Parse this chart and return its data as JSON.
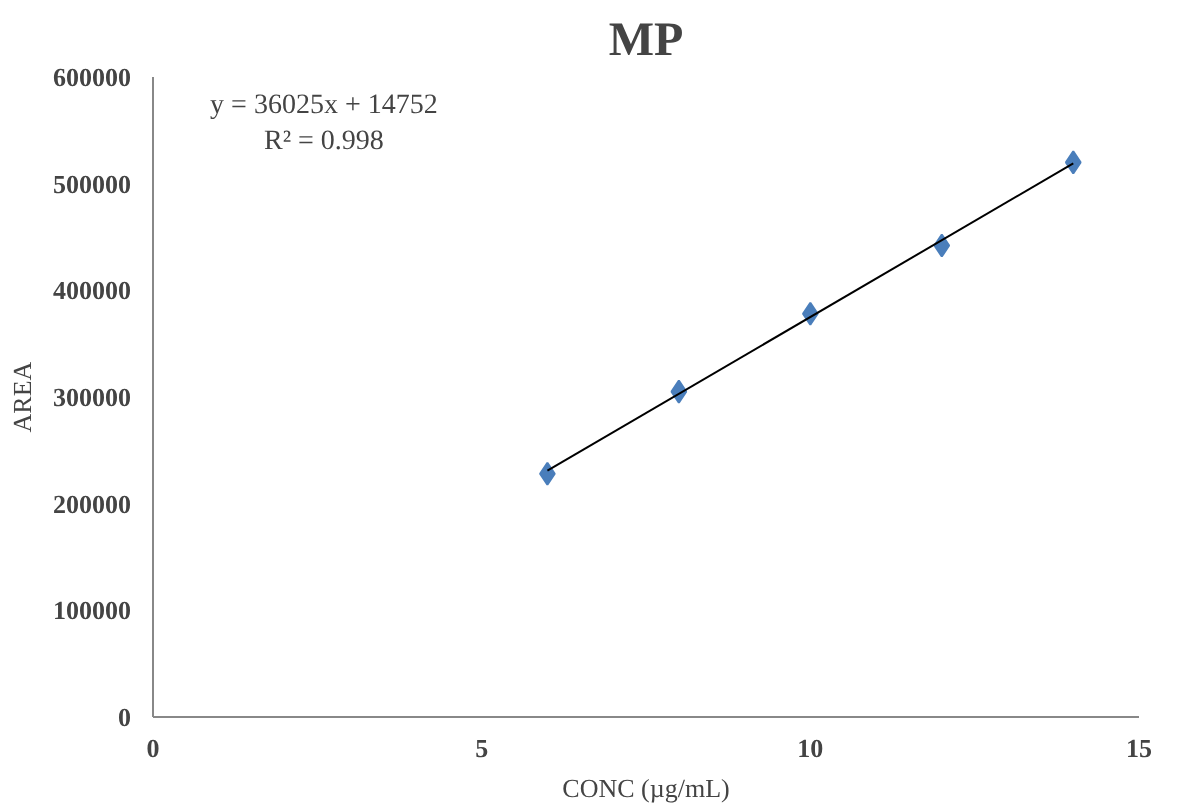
{
  "chart_data": {
    "type": "scatter",
    "title": "MP",
    "xlabel": "CONC (µg/mL)",
    "ylabel": "AREA",
    "annotations": [
      "y = 36025x + 14752",
      "R² = 0.998"
    ],
    "series": [
      {
        "color": "#4a7ebb",
        "x": [
          6,
          8,
          10,
          12,
          14
        ],
        "values": [
          228000,
          305000,
          378000,
          442000,
          520000
        ],
        "marker": "diamond"
      },
      {
        "type": "line",
        "color": "#000000",
        "x": [
          6,
          14
        ],
        "values": [
          231000,
          519000
        ],
        "marker": "none",
        "line_style": "solid"
      }
    ],
    "xlim": [
      0,
      15
    ],
    "xticks": [
      0,
      5,
      10,
      15
    ],
    "ylim": [
      0,
      600000
    ],
    "yticks": [
      0,
      100000,
      200000,
      300000,
      400000,
      500000,
      600000
    ],
    "grid": false
  }
}
